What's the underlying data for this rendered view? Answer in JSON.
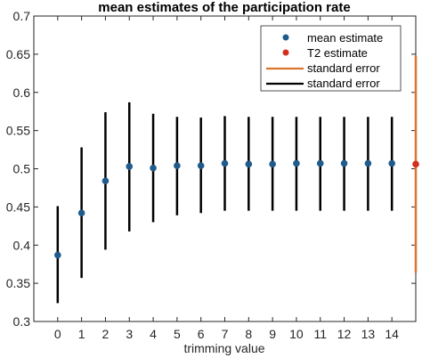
{
  "chart_data": {
    "type": "scatter",
    "title": "mean estimates of the participation rate",
    "xlabel": "trimming value",
    "ylabel": "",
    "xlim": [
      -1,
      15
    ],
    "ylim": [
      0.3,
      0.7
    ],
    "x_ticks": [
      0,
      1,
      2,
      3,
      4,
      5,
      6,
      7,
      8,
      9,
      10,
      11,
      12,
      13,
      14
    ],
    "y_ticks": [
      0.3,
      0.35,
      0.4,
      0.45,
      0.5,
      0.55,
      0.6,
      0.65,
      0.7
    ],
    "y_tick_labels": [
      "0.3",
      "0.35",
      "0.4",
      "0.45",
      "0.5",
      "0.55",
      "0.6",
      "0.65",
      "0.7"
    ],
    "grid": false,
    "legend_position": "top-right",
    "series": [
      {
        "name": "mean estimate",
        "color": "#1f5b8c",
        "marker": "circle",
        "x": [
          0,
          1,
          2,
          3,
          4,
          5,
          6,
          7,
          8,
          9,
          10,
          11,
          12,
          13,
          14
        ],
        "y": [
          0.387,
          0.442,
          0.484,
          0.503,
          0.501,
          0.504,
          0.504,
          0.507,
          0.506,
          0.506,
          0.507,
          0.507,
          0.507,
          0.507,
          0.507
        ]
      },
      {
        "name": "T2 estimate",
        "color": "#d32f1f",
        "marker": "circle",
        "x": [
          15
        ],
        "y": [
          0.506
        ]
      }
    ],
    "error_bars": [
      {
        "name": "standard error",
        "color": "#d9752c",
        "series": "T2 estimate",
        "low": [
          0.364
        ],
        "high": [
          0.648
        ]
      },
      {
        "name": "standard error",
        "color": "#000000",
        "series": "mean estimate",
        "low": [
          0.324,
          0.357,
          0.394,
          0.418,
          0.43,
          0.439,
          0.442,
          0.445,
          0.445,
          0.445,
          0.445,
          0.445,
          0.445,
          0.445,
          0.445
        ],
        "high": [
          0.451,
          0.528,
          0.574,
          0.587,
          0.572,
          0.568,
          0.567,
          0.569,
          0.568,
          0.568,
          0.568,
          0.568,
          0.568,
          0.568,
          0.568
        ]
      }
    ]
  }
}
